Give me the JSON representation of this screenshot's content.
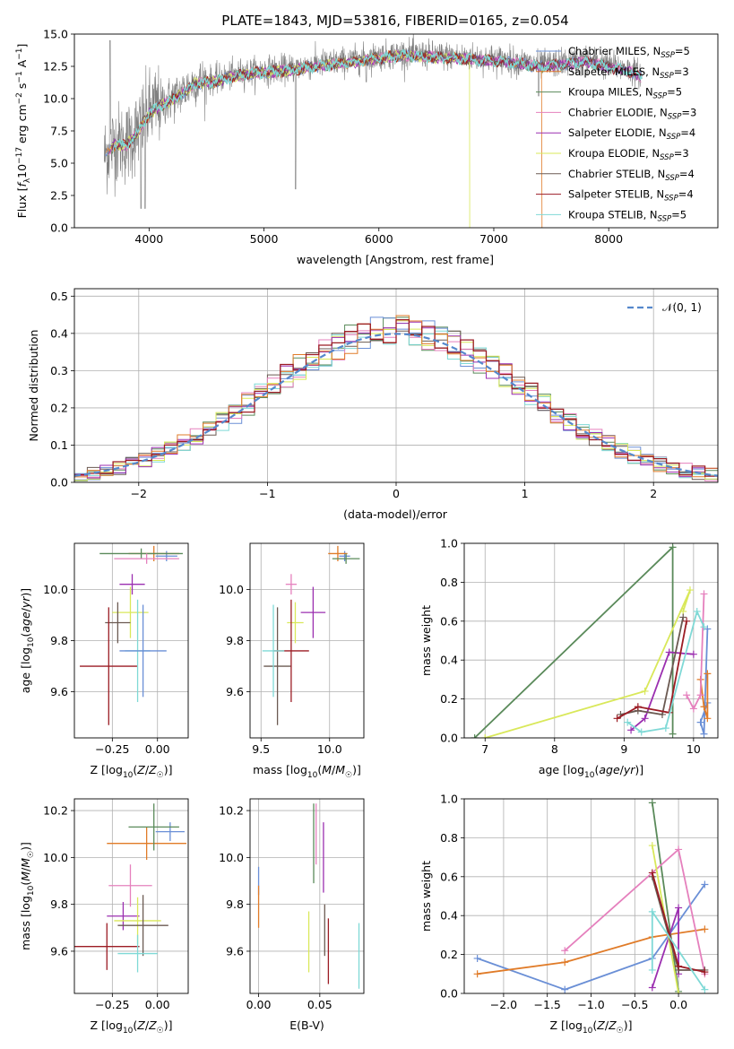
{
  "figure": {
    "title": "PLATE=1843, MJD=53816, FIBERID=0165, z=0.054"
  },
  "colors": {
    "series": [
      "#6a8fd6",
      "#e07b28",
      "#5a8a5a",
      "#e580bd",
      "#9b2fb0",
      "#d9e85a",
      "#6b5a52",
      "#9b1c24",
      "#7fd9d6"
    ],
    "data_spectrum": "#808080",
    "normal_curve": "#5588cc",
    "grid": "#b0b0b0"
  },
  "chart_data": [
    {
      "type": "line",
      "id": "spectrum",
      "xlabel": "wavelength [Angstrom, rest frame]",
      "ylabel": "Flux [f_λ10^-17 erg cm^-2 s^-1 A^-1]",
      "xlim": [
        3350,
        8950
      ],
      "ylim": [
        0,
        15
      ],
      "xticks": [
        4000,
        5000,
        6000,
        7000,
        8000
      ],
      "yticks": [
        0.0,
        2.5,
        5.0,
        7.5,
        10.0,
        12.5,
        15.0
      ],
      "grid": false,
      "legend_placement": "right",
      "continuum": {
        "x": [
          3600,
          3700,
          3800,
          3900,
          4000,
          4100,
          4200,
          4300,
          4400,
          4600,
          4800,
          5000,
          5200,
          5400,
          5600,
          5800,
          6000,
          6200,
          6400,
          6600,
          6800,
          7000,
          7200,
          7400,
          7600,
          7800,
          8000,
          8200,
          8300
        ],
        "y": [
          5.5,
          6.6,
          6.5,
          7.5,
          9.0,
          9.6,
          10.0,
          10.6,
          11.3,
          11.5,
          12.0,
          12.2,
          12.3,
          12.6,
          12.8,
          13.0,
          13.3,
          13.5,
          13.4,
          13.3,
          13.2,
          13.1,
          12.9,
          12.6,
          12.8,
          13.0,
          12.6,
          12.2,
          11.8
        ]
      },
      "series": [
        {
          "name": "Chabrier MILES, N_SSP=5"
        },
        {
          "name": "Salpeter MILES, N_SSP=3"
        },
        {
          "name": "Kroupa MILES, N_SSP=5"
        },
        {
          "name": "Chabrier ELODIE, N_SSP=3"
        },
        {
          "name": "Salpeter ELODIE, N_SSP=4"
        },
        {
          "name": "Kroupa ELODIE, N_SSP=3"
        },
        {
          "name": "Chabrier STELIB, N_SSP=4"
        },
        {
          "name": "Salpeter STELIB, N_SSP=4"
        },
        {
          "name": "Kroupa STELIB, N_SSP=5"
        }
      ]
    },
    {
      "type": "line",
      "id": "residuals",
      "xlabel": "(data-model)/error",
      "ylabel": "Normed distribution",
      "xlim": [
        -2.5,
        2.5
      ],
      "ylim": [
        0,
        0.52
      ],
      "xticks": [
        -2,
        -1,
        0,
        1,
        2
      ],
      "yticks": [
        0.0,
        0.1,
        0.2,
        0.3,
        0.4,
        0.5
      ],
      "grid": true,
      "legend_placement": "top-right",
      "legend": [
        "N(0,1)"
      ],
      "bin_width": 0.1
    },
    {
      "type": "scatter",
      "id": "age_vs_z",
      "xlabel": "Z [log10(Z/Z☉)]",
      "ylabel": "age  [log10(age/yr)]",
      "xlim": [
        -0.46,
        0.17
      ],
      "ylim": [
        9.42,
        10.18
      ],
      "xticks": [
        -0.25,
        0.0
      ],
      "yticks": [
        9.6,
        9.8,
        10.0
      ],
      "grid": true,
      "points": [
        {
          "x": 0.05,
          "xerr": 0.06,
          "y": 10.13,
          "yerr": 0.02
        },
        {
          "x": -0.02,
          "xerr": 0.14,
          "y": 10.14,
          "yerr": 0.03
        },
        {
          "x": -0.09,
          "xerr": 0.23,
          "y": 10.14,
          "yerr": 0.02
        },
        {
          "x": -0.06,
          "xerr": 0.18,
          "y": 10.12,
          "yerr": 0.02
        },
        {
          "x": -0.14,
          "xerr": 0.07,
          "y": 10.02,
          "yerr": 0.04
        },
        {
          "x": -0.15,
          "xerr": 0.1,
          "y": 9.91,
          "yerr": 0.1
        },
        {
          "x": -0.22,
          "xerr": 0.07,
          "y": 9.87,
          "yerr": 0.08
        },
        {
          "x": -0.27,
          "xerr": 0.16,
          "y": 9.7,
          "yerr": 0.23
        },
        {
          "x": -0.11,
          "xerr": 0.07,
          "y": 9.76,
          "yerr": 0.2
        },
        {
          "x": -0.08,
          "xerr": 0.13,
          "y": 9.76,
          "yerr": 0.18
        }
      ]
    },
    {
      "type": "scatter",
      "id": "age_vs_mass",
      "xlabel": "mass [log10(M/M☉)]",
      "ylabel": "",
      "xlim": [
        9.42,
        10.25
      ],
      "ylim": [
        9.42,
        10.18
      ],
      "xticks": [
        9.5,
        10.0
      ],
      "yticks": [
        9.6,
        9.8,
        10.0
      ],
      "grid": true,
      "points": [
        {
          "x": 10.11,
          "xerr": 0.04,
          "y": 10.13,
          "yerr": 0.02
        },
        {
          "x": 10.06,
          "xerr": 0.07,
          "y": 10.14,
          "yerr": 0.03
        },
        {
          "x": 10.12,
          "xerr": 0.1,
          "y": 10.12,
          "yerr": 0.02
        },
        {
          "x": 9.72,
          "xerr": 0.04,
          "y": 10.02,
          "yerr": 0.04
        },
        {
          "x": 9.88,
          "xerr": 0.09,
          "y": 9.91,
          "yerr": 0.1
        },
        {
          "x": 9.75,
          "xerr": 0.06,
          "y": 9.87,
          "yerr": 0.08
        },
        {
          "x": 9.62,
          "xerr": 0.1,
          "y": 9.7,
          "yerr": 0.23
        },
        {
          "x": 9.72,
          "xerr": 0.13,
          "y": 9.76,
          "yerr": 0.2
        },
        {
          "x": 9.59,
          "xerr": 0.08,
          "y": 9.76,
          "yerr": 0.18
        }
      ]
    },
    {
      "type": "line",
      "id": "weight_vs_age",
      "xlabel": "age  [log10(age/yr)]",
      "ylabel": "mass weight",
      "xlim": [
        6.7,
        10.35
      ],
      "ylim": [
        0,
        1
      ],
      "xticks": [
        7,
        8,
        9,
        10
      ],
      "yticks": [
        0.0,
        0.2,
        0.4,
        0.6,
        0.8,
        1.0
      ],
      "grid": true,
      "series": [
        {
          "x": [
            10.2,
            10.15,
            10.1,
            10.2
          ],
          "y": [
            0.56,
            0.02,
            0.08,
            0.18
          ]
        },
        {
          "x": [
            10.2,
            10.2,
            10.15,
            10.1
          ],
          "y": [
            0.33,
            0.1,
            0.16,
            0.3
          ]
        },
        {
          "x": [
            6.85,
            9.7,
            9.7
          ],
          "y": [
            0.0,
            0.98,
            0.02
          ]
        },
        {
          "x": [
            10.15,
            10.1,
            10.0,
            9.9
          ],
          "y": [
            0.74,
            0.22,
            0.15,
            0.22
          ]
        },
        {
          "x": [
            9.1,
            9.3,
            9.65,
            10.0
          ],
          "y": [
            0.04,
            0.1,
            0.44,
            0.43
          ]
        },
        {
          "x": [
            7.0,
            9.3,
            9.95,
            9.85
          ],
          "y": [
            0.0,
            0.24,
            0.76,
            0.65
          ]
        },
        {
          "x": [
            8.95,
            9.2,
            9.55,
            9.85
          ],
          "y": [
            0.12,
            0.14,
            0.12,
            0.62
          ]
        },
        {
          "x": [
            8.9,
            9.2,
            9.65,
            9.9
          ],
          "y": [
            0.1,
            0.16,
            0.13,
            0.6
          ]
        },
        {
          "x": [
            9.05,
            9.25,
            9.6,
            10.05,
            10.15
          ],
          "y": [
            0.08,
            0.03,
            0.05,
            0.65,
            0.57
          ]
        }
      ]
    },
    {
      "type": "scatter",
      "id": "mass_vs_z",
      "xlabel": "Z [log10(Z/Z☉)]",
      "ylabel": "mass [log10(M/M☉)]",
      "xlim": [
        -0.46,
        0.17
      ],
      "ylim": [
        9.42,
        10.25
      ],
      "xticks": [
        -0.25,
        0.0
      ],
      "yticks": [
        9.6,
        9.8,
        10.0,
        10.2
      ],
      "grid": true,
      "points": [
        {
          "x": 0.07,
          "xerr": 0.08,
          "y": 10.11,
          "yerr": 0.04
        },
        {
          "x": -0.06,
          "xerr": 0.22,
          "y": 10.06,
          "yerr": 0.07
        },
        {
          "x": -0.02,
          "xerr": 0.14,
          "y": 10.13,
          "yerr": 0.1
        },
        {
          "x": -0.15,
          "xerr": 0.12,
          "y": 9.88,
          "yerr": 0.09
        },
        {
          "x": -0.19,
          "xerr": 0.09,
          "y": 9.75,
          "yerr": 0.06
        },
        {
          "x": -0.11,
          "xerr": 0.13,
          "y": 9.73,
          "yerr": 0.1
        },
        {
          "x": -0.08,
          "xerr": 0.14,
          "y": 9.71,
          "yerr": 0.13
        },
        {
          "x": -0.28,
          "xerr": 0.18,
          "y": 9.62,
          "yerr": 0.1
        },
        {
          "x": -0.11,
          "xerr": 0.11,
          "y": 9.59,
          "yerr": 0.08
        }
      ]
    },
    {
      "type": "scatter",
      "id": "mass_vs_ebv",
      "xlabel": "E(B-V)",
      "ylabel": "",
      "xlim": [
        -0.007,
        0.086
      ],
      "ylim": [
        9.42,
        10.25
      ],
      "xticks": [
        0.0,
        0.05
      ],
      "yticks": [
        9.6,
        9.8,
        10.0,
        10.2
      ],
      "grid": true,
      "points": [
        {
          "x": 0.0,
          "y": 9.9,
          "yerr": 0.06
        },
        {
          "x": 0.0,
          "y": 9.79,
          "yerr": 0.09
        },
        {
          "x": 0.045,
          "y": 10.06,
          "yerr": 0.17
        },
        {
          "x": 0.047,
          "y": 10.1,
          "yerr": 0.13
        },
        {
          "x": 0.053,
          "y": 10.0,
          "yerr": 0.15
        },
        {
          "x": 0.041,
          "y": 9.64,
          "yerr": 0.13
        },
        {
          "x": 0.054,
          "y": 9.69,
          "yerr": 0.11
        },
        {
          "x": 0.057,
          "y": 9.6,
          "yerr": 0.14
        },
        {
          "x": 0.082,
          "y": 9.58,
          "yerr": 0.14
        }
      ]
    },
    {
      "type": "line",
      "id": "weight_vs_z",
      "xlabel": "Z [log10(Z/Z☉)]",
      "ylabel": "mass weight",
      "xlim": [
        -2.45,
        0.45
      ],
      "ylim": [
        0,
        1
      ],
      "xticks": [
        -2.0,
        -1.5,
        -1.0,
        -0.5,
        0.0
      ],
      "yticks": [
        0.0,
        0.2,
        0.4,
        0.6,
        0.8,
        1.0
      ],
      "grid": true,
      "series": [
        {
          "x": [
            -2.3,
            -1.3,
            -0.3,
            0.3
          ],
          "y": [
            0.18,
            0.02,
            0.18,
            0.56
          ]
        },
        {
          "x": [
            -2.3,
            -1.3,
            -0.3,
            0.3
          ],
          "y": [
            0.1,
            0.16,
            0.29,
            0.33
          ]
        },
        {
          "x": [
            -0.3,
            0.0
          ],
          "y": [
            0.98,
            0.01
          ]
        },
        {
          "x": [
            -1.3,
            0.0,
            0.3
          ],
          "y": [
            0.22,
            0.74,
            0.1
          ]
        },
        {
          "x": [
            -0.3,
            0.0,
            0.0
          ],
          "y": [
            0.03,
            0.44,
            0.1
          ]
        },
        {
          "x": [
            -0.3,
            0.0
          ],
          "y": [
            0.76,
            0.0
          ]
        },
        {
          "x": [
            -0.3,
            0.0,
            0.3
          ],
          "y": [
            0.6,
            0.12,
            0.12
          ]
        },
        {
          "x": [
            -0.3,
            0.0,
            0.3
          ],
          "y": [
            0.62,
            0.14,
            0.11
          ]
        },
        {
          "x": [
            -0.3,
            -0.3,
            0.3
          ],
          "y": [
            0.12,
            0.42,
            0.02
          ]
        }
      ]
    }
  ]
}
